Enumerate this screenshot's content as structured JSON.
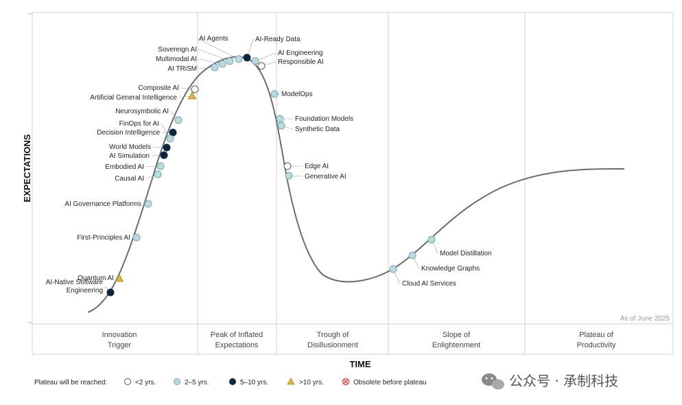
{
  "axes": {
    "y_label": "EXPECTATIONS",
    "x_label": "TIME"
  },
  "as_of": "As of June 2025",
  "phases": [
    [
      "Innovation",
      "Trigger"
    ],
    [
      "Peak of Inflated",
      "Expectations"
    ],
    [
      "Trough of",
      "Disillusionment"
    ],
    [
      "Slope of",
      "Enlightenment"
    ],
    [
      "Plateau of",
      "Productivity"
    ]
  ],
  "legend": {
    "title": "Plateau will be reached:",
    "items": [
      {
        "label": "<2 yrs.",
        "type": "lt2"
      },
      {
        "label": "2–5 yrs.",
        "type": "y25"
      },
      {
        "label": "5–10 yrs.",
        "type": "y510"
      },
      {
        "label": ">10 yrs.",
        "type": "gt10"
      },
      {
        "label": "Obsolete before plateau",
        "type": "obsolete"
      }
    ]
  },
  "watermark": "公众号 · 承制科技",
  "colors": {
    "lt2": "#ffffff",
    "y25": "#b9dbe0",
    "y510": "#0f2640",
    "gt10": "#d8b64a",
    "obsolete": "#e05050",
    "curve": "#6b6b6b"
  },
  "technologies": [
    {
      "name": "AI-Native Software Engineering",
      "type": "y510"
    },
    {
      "name": "Quantum AI",
      "type": "gt10"
    },
    {
      "name": "First-Principles AI",
      "type": "y25"
    },
    {
      "name": "AI Governance Platforms",
      "type": "y25"
    },
    {
      "name": "Causal AI",
      "type": "y25"
    },
    {
      "name": "Embodied AI",
      "type": "y25"
    },
    {
      "name": "AI Simulation",
      "type": "y510"
    },
    {
      "name": "World Models",
      "type": "y510"
    },
    {
      "name": "Decision Intelligence",
      "type": "y510"
    },
    {
      "name": "FinOps for AI",
      "type": "y25"
    },
    {
      "name": "Neurosymbolic AI",
      "type": "y25"
    },
    {
      "name": "Artificial General Intelligence",
      "type": "gt10"
    },
    {
      "name": "Composite AI",
      "type": "lt2"
    },
    {
      "name": "AI TRiSM",
      "type": "y25"
    },
    {
      "name": "Multimodal AI",
      "type": "y25"
    },
    {
      "name": "Sovereign AI",
      "type": "y25"
    },
    {
      "name": "AI Agents",
      "type": "y25"
    },
    {
      "name": "AI-Ready Data",
      "type": "y510"
    },
    {
      "name": "AI Engineering",
      "type": "y25"
    },
    {
      "name": "Responsible AI",
      "type": "lt2"
    },
    {
      "name": "ModelOps",
      "type": "y25"
    },
    {
      "name": "Foundation Models",
      "type": "y25"
    },
    {
      "name": "Synthetic Data",
      "type": "y25"
    },
    {
      "name": "Edge AI",
      "type": "lt2"
    },
    {
      "name": "Generative AI",
      "type": "y25"
    },
    {
      "name": "Cloud AI Services",
      "type": "y25"
    },
    {
      "name": "Knowledge Graphs",
      "type": "y25"
    },
    {
      "name": "Model Distillation",
      "type": "y25"
    }
  ]
}
